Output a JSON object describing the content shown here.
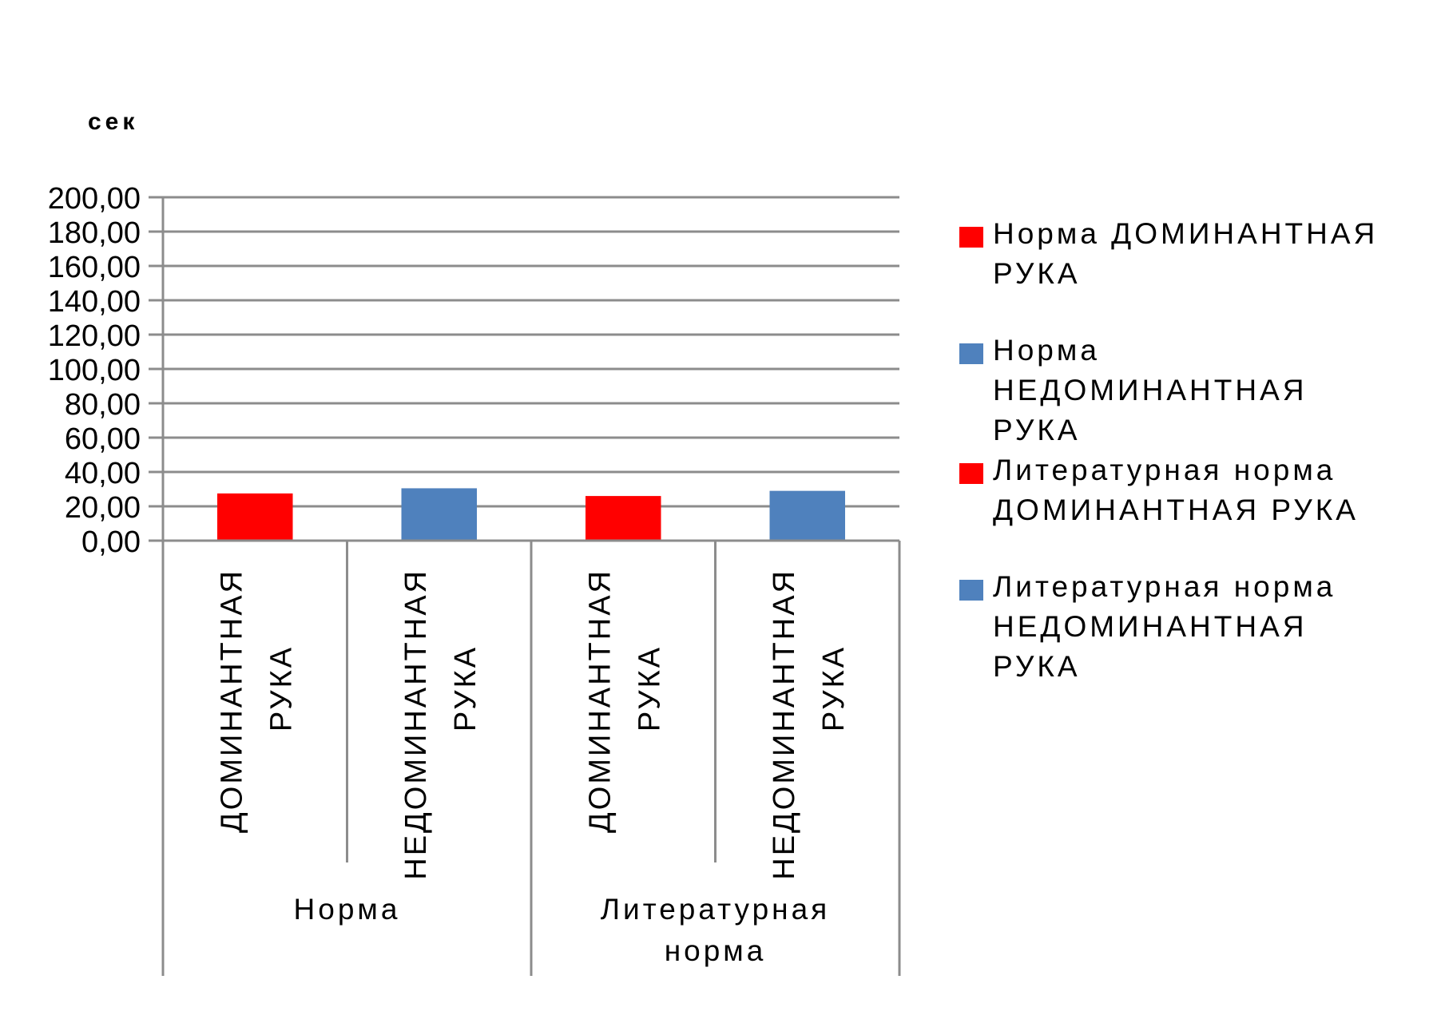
{
  "chart_data": {
    "type": "bar",
    "title": "",
    "ylabel": "сек",
    "xlabel": "",
    "ylim": [
      0,
      200
    ],
    "yticks": [
      "0,00",
      "20,00",
      "40,00",
      "60,00",
      "80,00",
      "100,00",
      "120,00",
      "140,00",
      "160,00",
      "180,00",
      "200,00"
    ],
    "ytick_values": [
      0,
      20,
      40,
      60,
      80,
      100,
      120,
      140,
      160,
      180,
      200
    ],
    "grid": true,
    "legend_position": "right",
    "groups": [
      {
        "label": "Норма",
        "bars": [
          {
            "category_lines": [
              "ДОМИНАНТНАЯ",
              "РУКА"
            ],
            "value": 27.5,
            "series": 0
          },
          {
            "category_lines": [
              "НЕДОМИНАНТНАЯ",
              "РУКА"
            ],
            "value": 30.5,
            "series": 1
          }
        ]
      },
      {
        "label": "Литературная норма",
        "label_lines": [
          "Литературная",
          "норма"
        ],
        "bars": [
          {
            "category_lines": [
              "ДОМИНАНТНАЯ",
              "РУКА"
            ],
            "value": 26.0,
            "series": 2
          },
          {
            "category_lines": [
              "НЕДОМИНАНТНАЯ",
              "РУКА"
            ],
            "value": 29.0,
            "series": 3
          }
        ]
      }
    ],
    "series": [
      {
        "name": "Норма ДОМИНАНТНАЯ РУКА",
        "name_lines": [
          "Норма ДОМИНАНТНАЯ",
          "РУКА"
        ],
        "color": "#ff0000"
      },
      {
        "name": "Норма НЕДОМИНАНТНАЯ РУКА",
        "name_lines": [
          "Норма",
          "НЕДОМИНАНТНАЯ",
          "РУКА"
        ],
        "color": "#4f81bd"
      },
      {
        "name": "Литературная норма ДОМИНАНТНАЯ РУКА",
        "name_lines": [
          "Литературная норма",
          "ДОМИНАНТНАЯ РУКА"
        ],
        "color": "#ff0000"
      },
      {
        "name": "Литературная норма НЕДОМИНАНТНАЯ РУКА",
        "name_lines": [
          "Литературная норма",
          "НЕДОМИНАНТНАЯ",
          "РУКА"
        ],
        "color": "#4f81bd"
      }
    ]
  }
}
